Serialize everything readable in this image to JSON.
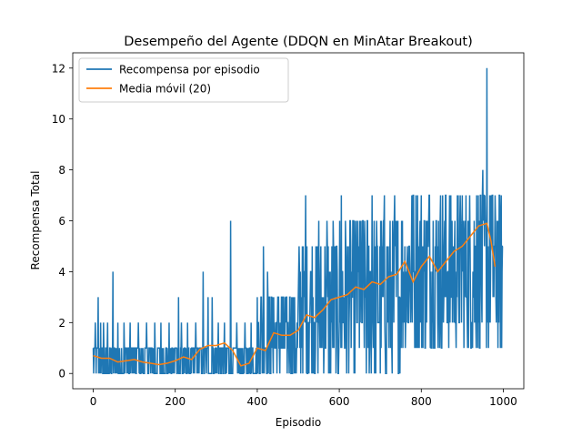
{
  "chart_data": {
    "type": "line",
    "title": "Desempeño del Agente (DDQN en MinAtar Breakout)",
    "xlabel": "Episodio",
    "ylabel": "Recompensa Total",
    "xlim": [
      -50,
      1050
    ],
    "ylim": [
      -0.6,
      12.6
    ],
    "xticks": [
      0,
      200,
      400,
      600,
      800,
      1000
    ],
    "yticks": [
      0,
      2,
      4,
      6,
      8,
      10,
      12
    ],
    "grid": false,
    "legend_position": "top-left",
    "colors": {
      "raw": "#1f77b4",
      "ma": "#ff7f0e"
    },
    "series": [
      {
        "name": "Recompensa por episodio",
        "description": "Recompensa total en cada uno de los 1000 episodios (serie ruidosa); niveles aproximados por tramo",
        "segments": [
          {
            "x_start": 0,
            "x_end": 200,
            "min": 0,
            "max": 1,
            "spikes": [
              [
                5,
                2
              ],
              [
                12,
                3
              ],
              [
                18,
                2
              ],
              [
                25,
                2
              ],
              [
                35,
                2
              ],
              [
                48,
                4
              ],
              [
                60,
                2
              ],
              [
                75,
                2
              ],
              [
                90,
                2
              ],
              [
                110,
                2
              ],
              [
                130,
                2
              ],
              [
                150,
                2
              ],
              [
                165,
                2
              ],
              [
                185,
                2
              ]
            ]
          },
          {
            "x_start": 200,
            "x_end": 400,
            "min": 0,
            "max": 1,
            "spikes": [
              [
                208,
                3
              ],
              [
                215,
                2
              ],
              [
                230,
                2
              ],
              [
                250,
                2
              ],
              [
                268,
                4
              ],
              [
                280,
                3
              ],
              [
                290,
                3
              ],
              [
                305,
                2
              ],
              [
                320,
                2
              ],
              [
                335,
                6
              ],
              [
                350,
                2
              ],
              [
                370,
                2
              ],
              [
                385,
                2
              ]
            ]
          },
          {
            "x_start": 400,
            "x_end": 500,
            "min": 0,
            "max": 3,
            "spikes": [
              [
                410,
                3
              ],
              [
                415,
                5
              ],
              [
                425,
                4
              ],
              [
                440,
                3
              ],
              [
                460,
                3
              ],
              [
                480,
                3
              ]
            ]
          },
          {
            "x_start": 500,
            "x_end": 600,
            "min": 0,
            "max": 5,
            "spikes": [
              [
                510,
                5
              ],
              [
                518,
                7
              ],
              [
                530,
                4
              ],
              [
                550,
                6
              ],
              [
                570,
                6
              ],
              [
                585,
                6
              ]
            ]
          },
          {
            "x_start": 600,
            "x_end": 750,
            "min": 0,
            "max": 6,
            "spikes": [
              [
                605,
                7
              ],
              [
                610,
                2
              ],
              [
                650,
                6
              ],
              [
                680,
                7
              ],
              [
                710,
                7
              ],
              [
                735,
                7
              ]
            ]
          },
          {
            "x_start": 750,
            "x_end": 1000,
            "min": 1,
            "max": 7,
            "spikes": [
              [
                780,
                7
              ],
              [
                820,
                7
              ],
              [
                860,
                7
              ],
              [
                900,
                7
              ],
              [
                935,
                7
              ],
              [
                945,
                7
              ],
              [
                950,
                8
              ],
              [
                960,
                12
              ],
              [
                970,
                7
              ],
              [
                985,
                6
              ]
            ]
          }
        ]
      },
      {
        "name": "Media móvil (20)",
        "x": [
          0,
          20,
          40,
          60,
          80,
          100,
          120,
          140,
          160,
          180,
          200,
          220,
          240,
          260,
          280,
          300,
          320,
          340,
          360,
          380,
          400,
          420,
          440,
          460,
          480,
          500,
          520,
          540,
          560,
          580,
          600,
          620,
          640,
          660,
          680,
          700,
          720,
          740,
          760,
          780,
          800,
          820,
          840,
          860,
          880,
          900,
          920,
          940,
          960,
          970,
          980
        ],
        "values": [
          0.7,
          0.6,
          0.6,
          0.45,
          0.5,
          0.55,
          0.45,
          0.4,
          0.35,
          0.4,
          0.5,
          0.65,
          0.55,
          0.95,
          1.1,
          1.1,
          1.2,
          0.9,
          0.3,
          0.4,
          1.0,
          0.9,
          1.6,
          1.5,
          1.5,
          1.7,
          2.3,
          2.2,
          2.5,
          2.9,
          3.0,
          3.1,
          3.4,
          3.3,
          3.6,
          3.5,
          3.8,
          3.9,
          4.4,
          3.6,
          4.2,
          4.6,
          4.0,
          4.4,
          4.8,
          5.0,
          5.4,
          5.8,
          5.9,
          5.2,
          4.2
        ]
      }
    ]
  }
}
